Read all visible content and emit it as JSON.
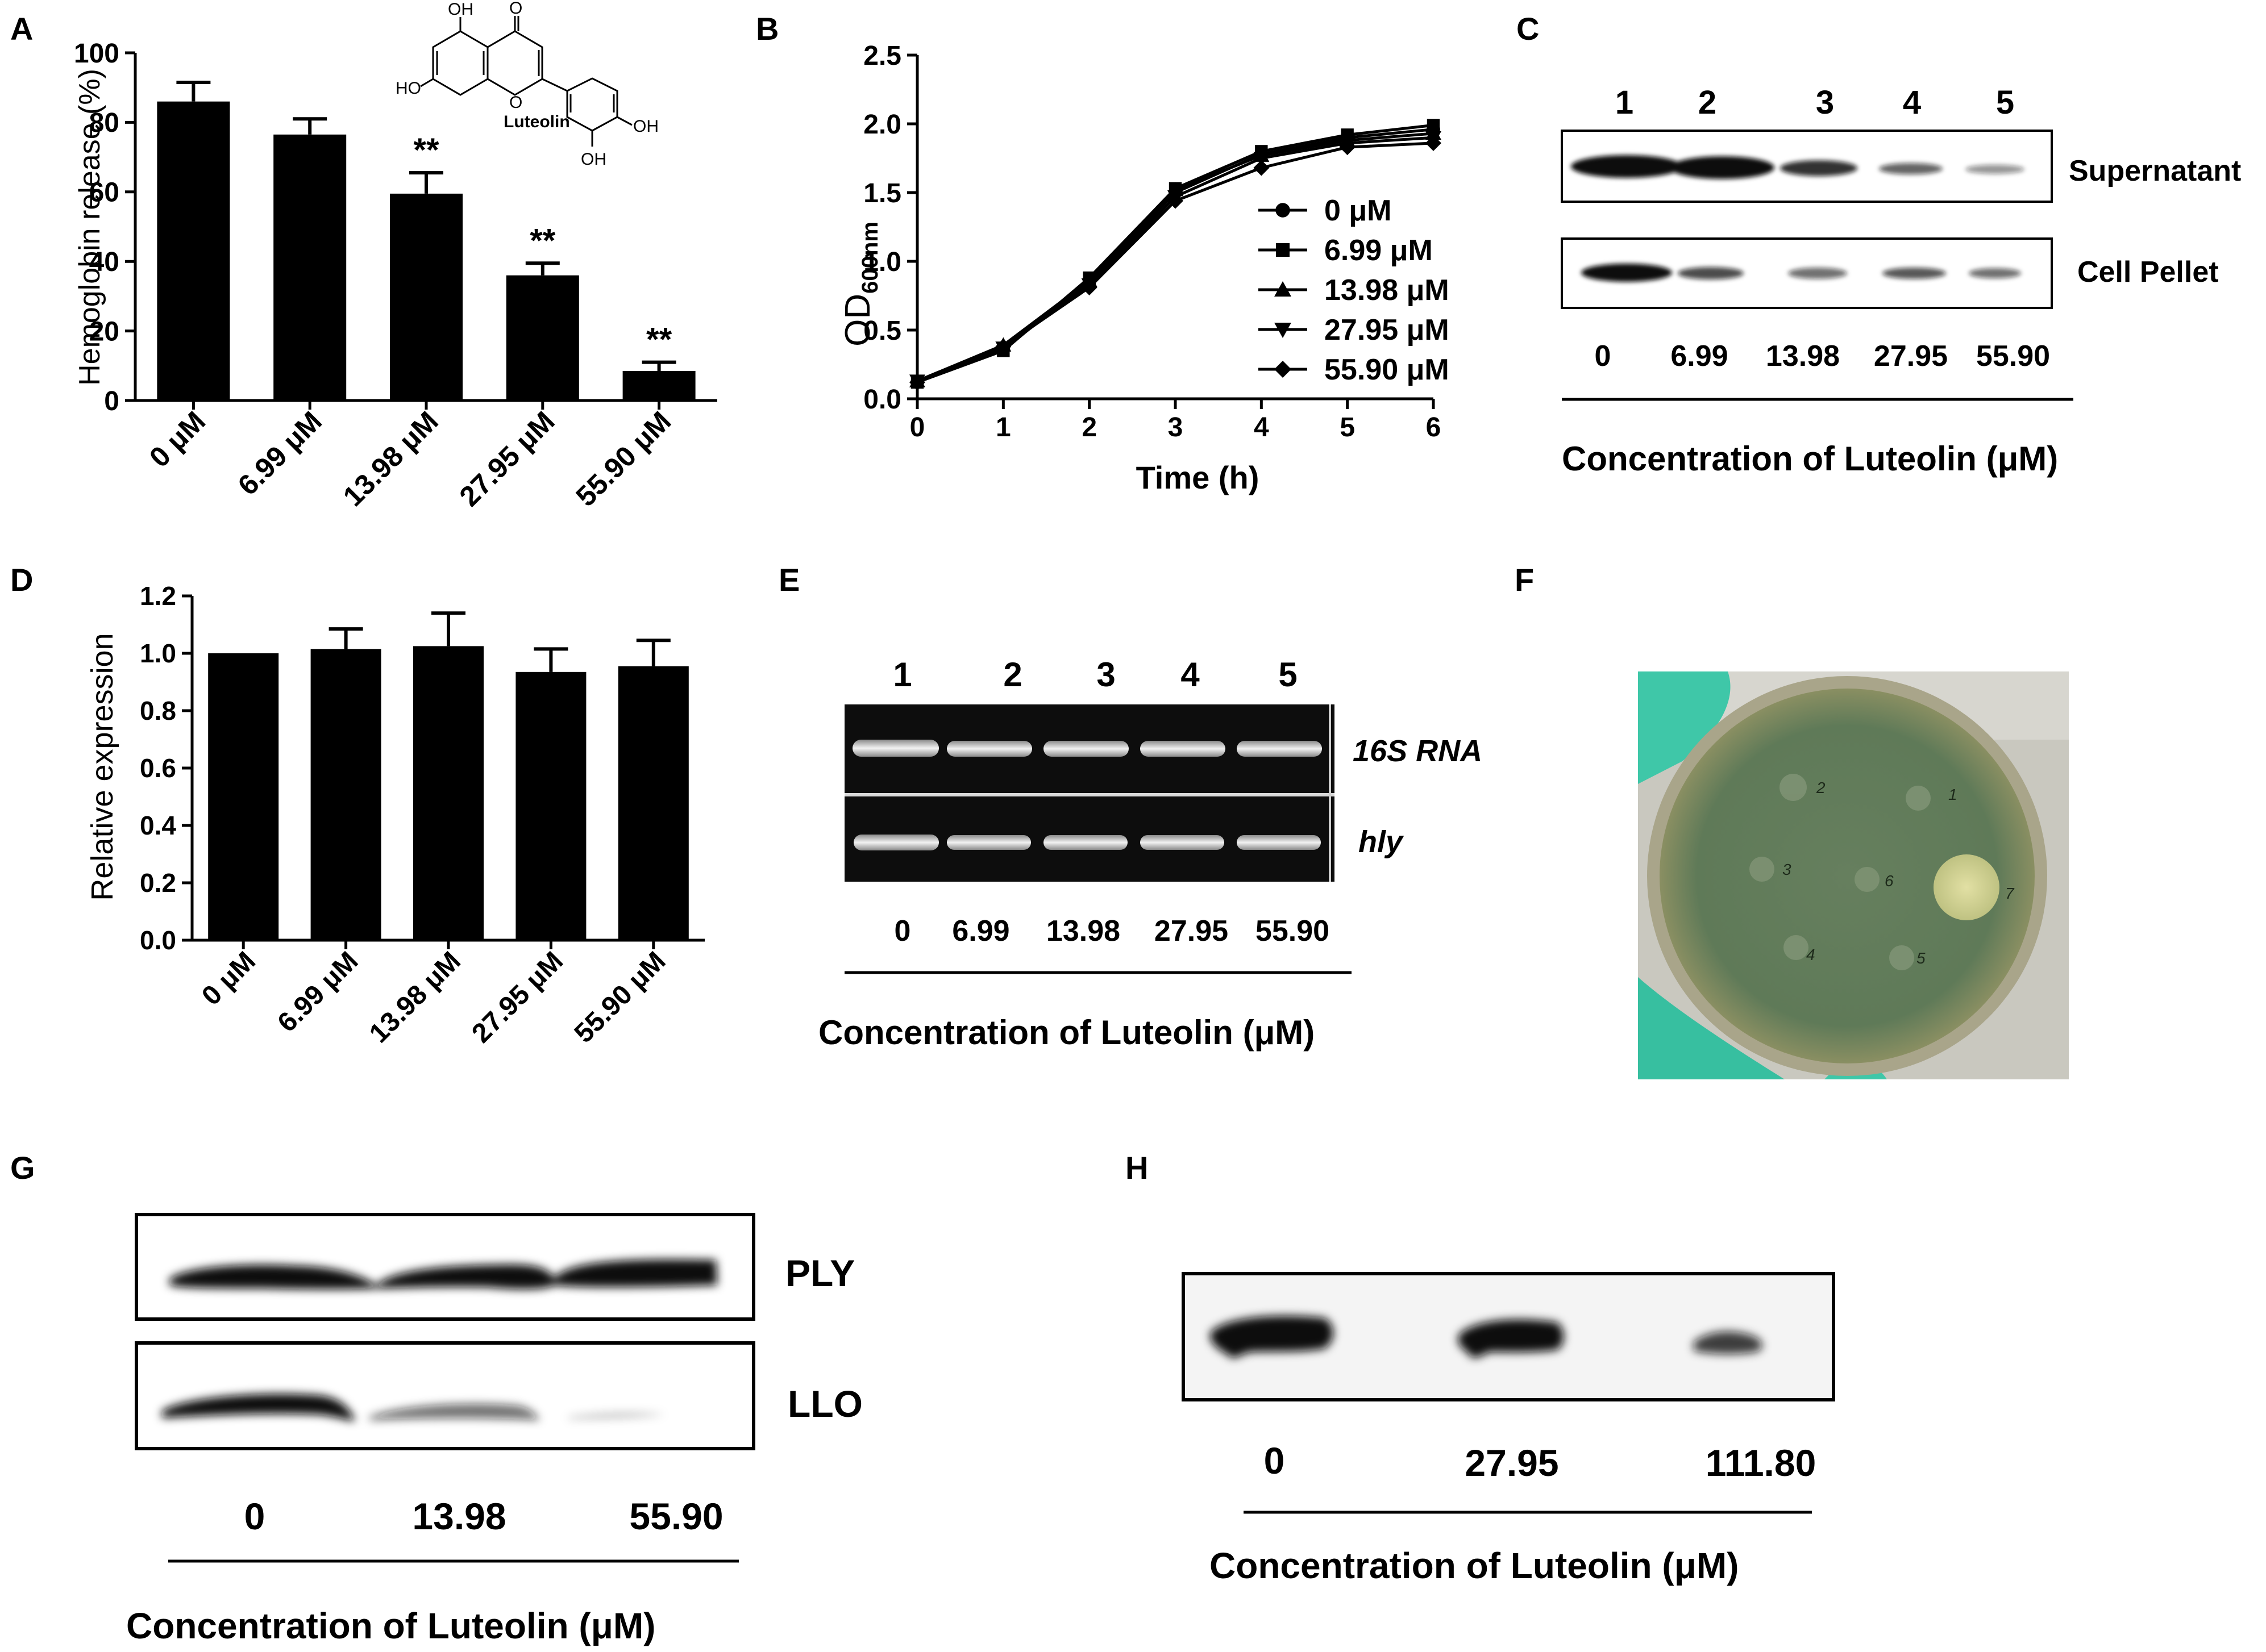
{
  "figure": {
    "panel_letters": [
      "A",
      "B",
      "C",
      "D",
      "E",
      "F",
      "G",
      "H"
    ],
    "colors": {
      "ink": "#000000",
      "background": "#ffffff",
      "plate_agar": "#5f7a58",
      "glove": "#3fc7a8"
    }
  },
  "panel_a": {
    "structure_label": "Luteolin",
    "structure_groups": {
      "oh_top": "OH",
      "o_top": "O",
      "oh_left": "HO",
      "oh_right": "OH",
      "oh_bottom": "OH"
    },
    "significance": "**"
  },
  "panel_c": {
    "lanes": [
      "1",
      "2",
      "3",
      "4",
      "5"
    ],
    "rows": [
      "Supernatant",
      "Cell Pellet"
    ],
    "concentrations": [
      "0",
      "6.99",
      "13.98",
      "27.95",
      "55.90"
    ],
    "caption": "Concentration of Luteolin (μM)"
  },
  "panel_e": {
    "lanes": [
      "1",
      "2",
      "3",
      "4",
      "5"
    ],
    "rows": [
      "16S RNA",
      "hly"
    ],
    "concentrations": [
      "0",
      "6.99",
      "13.98",
      "27.95",
      "55.90"
    ],
    "caption": "Concentration of Luteolin (μM)"
  },
  "panel_f": {
    "wells": [
      "1",
      "2",
      "3",
      "4",
      "5",
      "6",
      "7"
    ],
    "colors": {
      "plate_agar": "#5f7a58",
      "zone": "#d8d89a",
      "glove": "#3fc7a8"
    }
  },
  "panel_g": {
    "rows": [
      "PLY",
      "LLO"
    ],
    "concentrations": [
      "0",
      "13.98",
      "55.90"
    ],
    "caption": "Concentration of Luteolin (μM)"
  },
  "panel_h": {
    "concentrations": [
      "0",
      "27.95",
      "111.80"
    ],
    "caption": "Concentration of Luteolin (μM)"
  },
  "chart_data": [
    {
      "panel": "A",
      "type": "bar",
      "categories": [
        "0 μM",
        "6.99 μM",
        "13.98 μM",
        "27.95 μM",
        "55.90 μM"
      ],
      "values": [
        86,
        76.5,
        59.5,
        36,
        8.5
      ],
      "errors": [
        5.5,
        4.5,
        6,
        3.5,
        2.5
      ],
      "significance": [
        "",
        "",
        "**",
        "**",
        "**"
      ],
      "ylabel": "Hemoglobin release (%)",
      "xlabel": "",
      "ylim": [
        0,
        100
      ],
      "yticks": [
        "0",
        "20",
        "40",
        "60",
        "80",
        "100"
      ],
      "bar_color": "#000000"
    },
    {
      "panel": "B",
      "type": "line",
      "x": [
        0,
        1,
        2,
        3,
        4,
        5,
        6
      ],
      "xticks": [
        "0",
        "1",
        "2",
        "3",
        "4",
        "5",
        "6"
      ],
      "yticks": [
        "0.0",
        "0.5",
        "1.0",
        "1.5",
        "2.0",
        "2.5"
      ],
      "series": [
        {
          "name": "0 μM",
          "marker": "circle",
          "values": [
            0.12,
            0.36,
            0.85,
            1.5,
            1.78,
            1.9,
            1.96
          ]
        },
        {
          "name": "6.99 μM",
          "marker": "square",
          "values": [
            0.12,
            0.35,
            0.88,
            1.53,
            1.8,
            1.92,
            1.99
          ]
        },
        {
          "name": "13.98 μM",
          "marker": "triangle-up",
          "values": [
            0.13,
            0.39,
            0.86,
            1.52,
            1.77,
            1.88,
            1.93
          ]
        },
        {
          "name": "27.95 μM",
          "marker": "triangle-down",
          "values": [
            0.13,
            0.37,
            0.83,
            1.47,
            1.75,
            1.86,
            1.9
          ]
        },
        {
          "name": "55.90 μM",
          "marker": "diamond",
          "values": [
            0.12,
            0.38,
            0.81,
            1.44,
            1.68,
            1.83,
            1.86
          ]
        }
      ],
      "ylabel": "OD",
      "ylabel_subscript": "600nm",
      "xlabel": "Time (h)",
      "xlim": [
        0,
        6
      ],
      "ylim": [
        0,
        2.5
      ],
      "legend": "right"
    },
    {
      "panel": "D",
      "type": "bar",
      "categories": [
        "0 μM",
        "6.99 μM",
        "13.98 μM",
        "27.95 μM",
        "55.90 μM"
      ],
      "values": [
        1.0,
        1.015,
        1.025,
        0.935,
        0.955
      ],
      "errors": [
        0,
        0.07,
        0.115,
        0.08,
        0.09
      ],
      "ylabel": "Relative expression",
      "xlabel": "",
      "ylim": [
        0,
        1.2
      ],
      "yticks": [
        "0.0",
        "0.2",
        "0.4",
        "0.6",
        "0.8",
        "1.0",
        "1.2"
      ],
      "bar_color": "#000000"
    }
  ]
}
